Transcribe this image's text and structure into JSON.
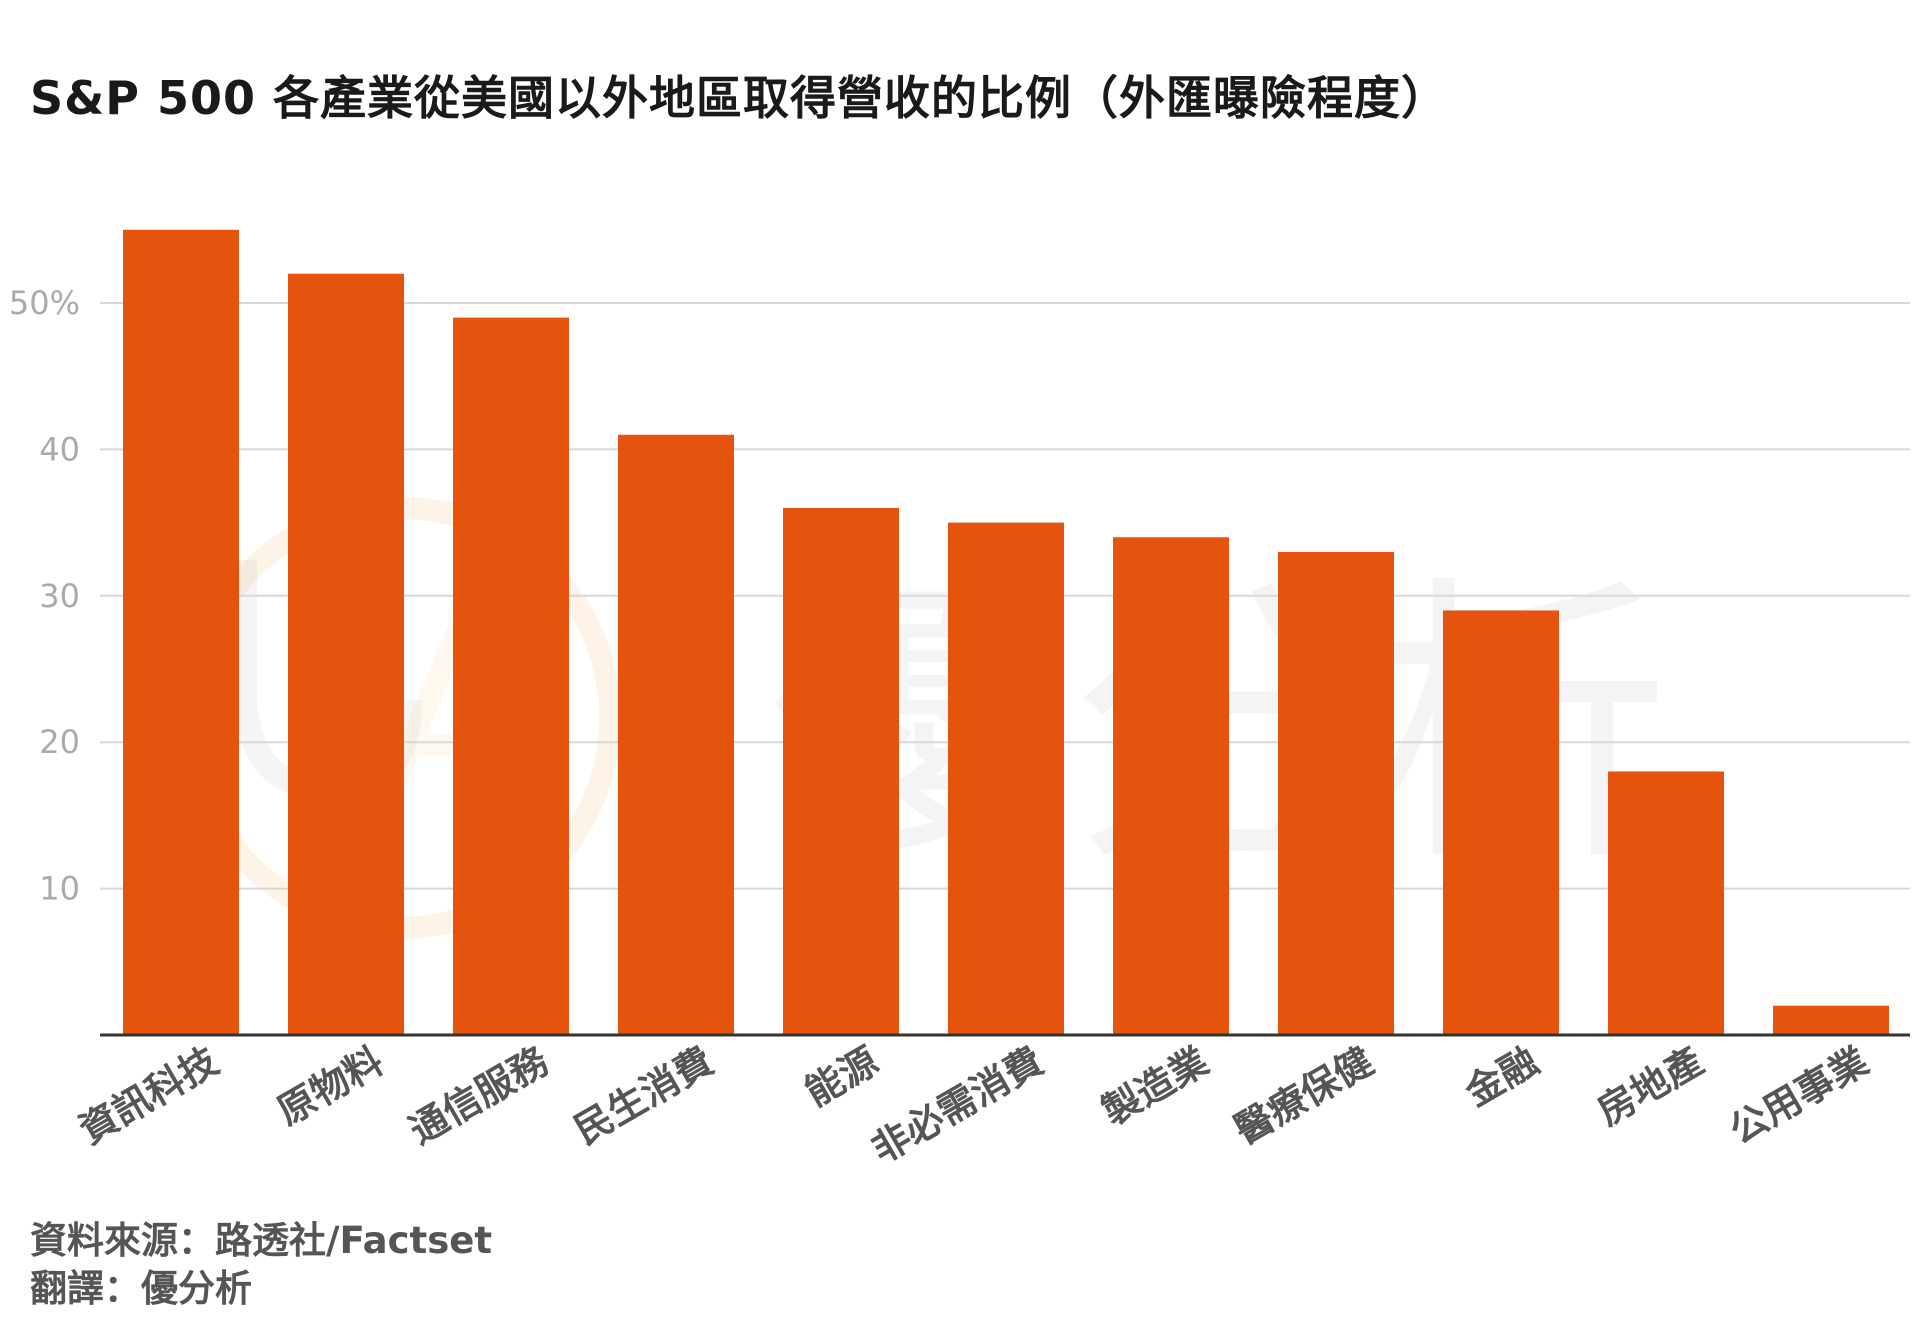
{
  "title": "S&P 500 各產業從美國以外地區取得營收的比例（外匯曝險程度）",
  "source": "資料來源：路透社/Factset",
  "credit": "翻譯：優分析",
  "watermark": {
    "logo_text": "優分析",
    "logo_mark": "UA"
  },
  "colors": {
    "bar": "#e5530f",
    "grid": "#d8d8d8",
    "axis": "#333333",
    "tick_text": "#aaaaaa",
    "category_text": "#555555",
    "title_text": "#1a1a1a"
  },
  "chart_data": {
    "type": "bar",
    "categories": [
      "資訊科技",
      "原物料",
      "通信服務",
      "民生消費",
      "能源",
      "非必需消費",
      "製造業",
      "醫療保健",
      "金融",
      "房地產",
      "公用事業"
    ],
    "values": [
      55,
      52,
      49,
      41,
      36,
      35,
      34,
      33,
      29,
      18,
      2
    ],
    "yticks": [
      10,
      20,
      30,
      40,
      50
    ],
    "ytick_labels": [
      "10",
      "20",
      "30",
      "40",
      "50%"
    ],
    "ylim": [
      0,
      58
    ],
    "grid": true,
    "legend": "none"
  }
}
